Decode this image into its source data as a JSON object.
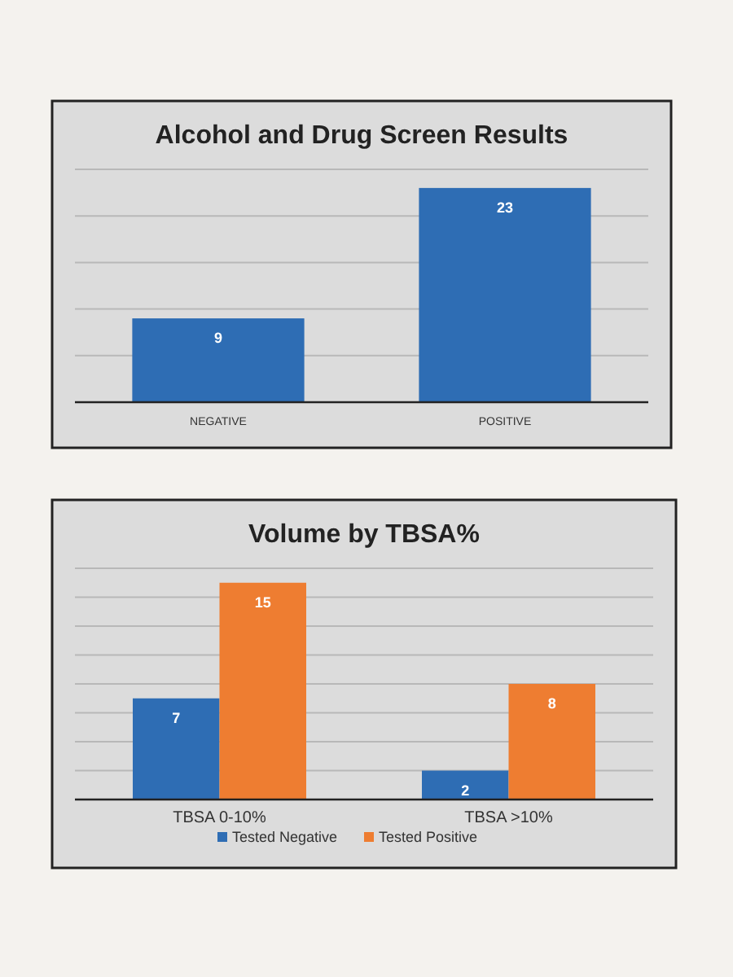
{
  "chart_data": [
    {
      "type": "bar",
      "title": "Alcohol and Drug Screen Results",
      "categories": [
        "NEGATIVE",
        "POSITIVE"
      ],
      "values": [
        9,
        23
      ],
      "color": "#2e6db4",
      "ylim": [
        0,
        25
      ],
      "yticks": [
        {
          "value": 0,
          "label": null
        },
        {
          "value": 5,
          "label": null
        },
        {
          "value": 10,
          "label": null
        },
        {
          "value": 15,
          "label": null
        },
        {
          "value": 20,
          "label": null
        },
        {
          "value": 25,
          "label": null
        }
      ],
      "grid": "y",
      "tick_labels": "x",
      "data_labels": true
    },
    {
      "type": "bar",
      "title": "Volume by TBSA%",
      "categories": [
        "TBSA 0-10%",
        "TBSA >10%"
      ],
      "series": [
        {
          "name": "Tested Negative",
          "color": "#2e6db4",
          "values": [
            7,
            2
          ]
        },
        {
          "name": "Tested Positive",
          "color": "#ee7d31",
          "values": [
            15,
            8
          ]
        }
      ],
      "ylim": [
        0,
        16
      ],
      "yticks": [
        {
          "value": 0,
          "label": null
        },
        {
          "value": 2,
          "label": null
        },
        {
          "value": 4,
          "label": null
        },
        {
          "value": 6,
          "label": null
        },
        {
          "value": 8,
          "label": null
        },
        {
          "value": 10,
          "label": null
        },
        {
          "value": 12,
          "label": null
        },
        {
          "value": 14,
          "label": null
        },
        {
          "value": 16,
          "label": null
        }
      ],
      "grid": "y",
      "tick_labels": "x",
      "data_labels": true,
      "legend": "bottom"
    }
  ]
}
